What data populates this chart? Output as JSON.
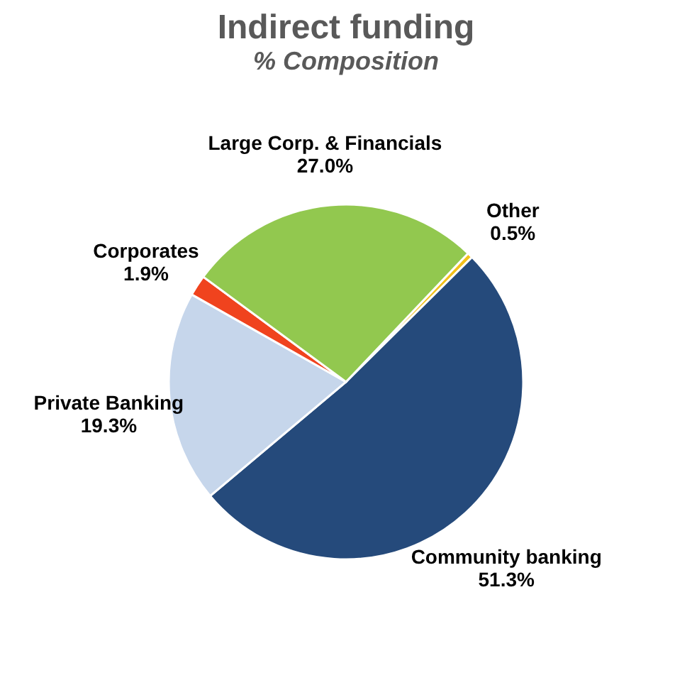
{
  "chart_data": {
    "type": "pie",
    "title": "Indirect funding",
    "subtitle": "% Composition",
    "categories": [
      "Other",
      "Community banking",
      "Private Banking",
      "Corporates",
      "Large Corp. & Financials"
    ],
    "values": [
      0.5,
      51.3,
      19.3,
      1.9,
      27.0
    ],
    "value_labels": [
      "0.5%",
      "51.3%",
      "19.3%",
      "1.9%",
      "27.0%"
    ],
    "colors": [
      "#f2c11c",
      "#254a7b",
      "#c6d6eb",
      "#f0431e",
      "#92c84f"
    ],
    "legend": false
  }
}
